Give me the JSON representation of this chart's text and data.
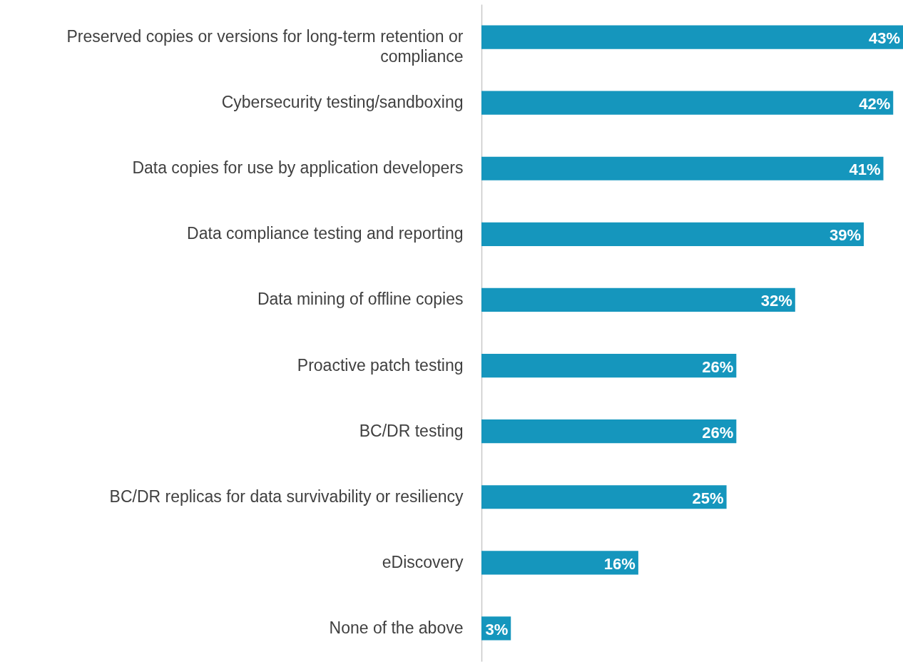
{
  "chart_data": {
    "type": "bar",
    "orientation": "horizontal",
    "categories": [
      "Preserved copies or versions for long-term retention or compliance",
      "Cybersecurity testing/sandboxing",
      "Data copies for use by application developers",
      "Data compliance testing and reporting",
      "Data mining of offline copies",
      "Proactive patch testing",
      "BC/DR testing",
      "BC/DR replicas for data survivability or resiliency",
      "eDiscovery",
      "None of the above"
    ],
    "values": [
      43,
      42,
      41,
      39,
      32,
      26,
      26,
      25,
      16,
      3
    ],
    "value_labels": [
      "43%",
      "42%",
      "41%",
      "39%",
      "32%",
      "26%",
      "26%",
      "25%",
      "16%",
      "3%"
    ],
    "color": "#1596bd"
  }
}
